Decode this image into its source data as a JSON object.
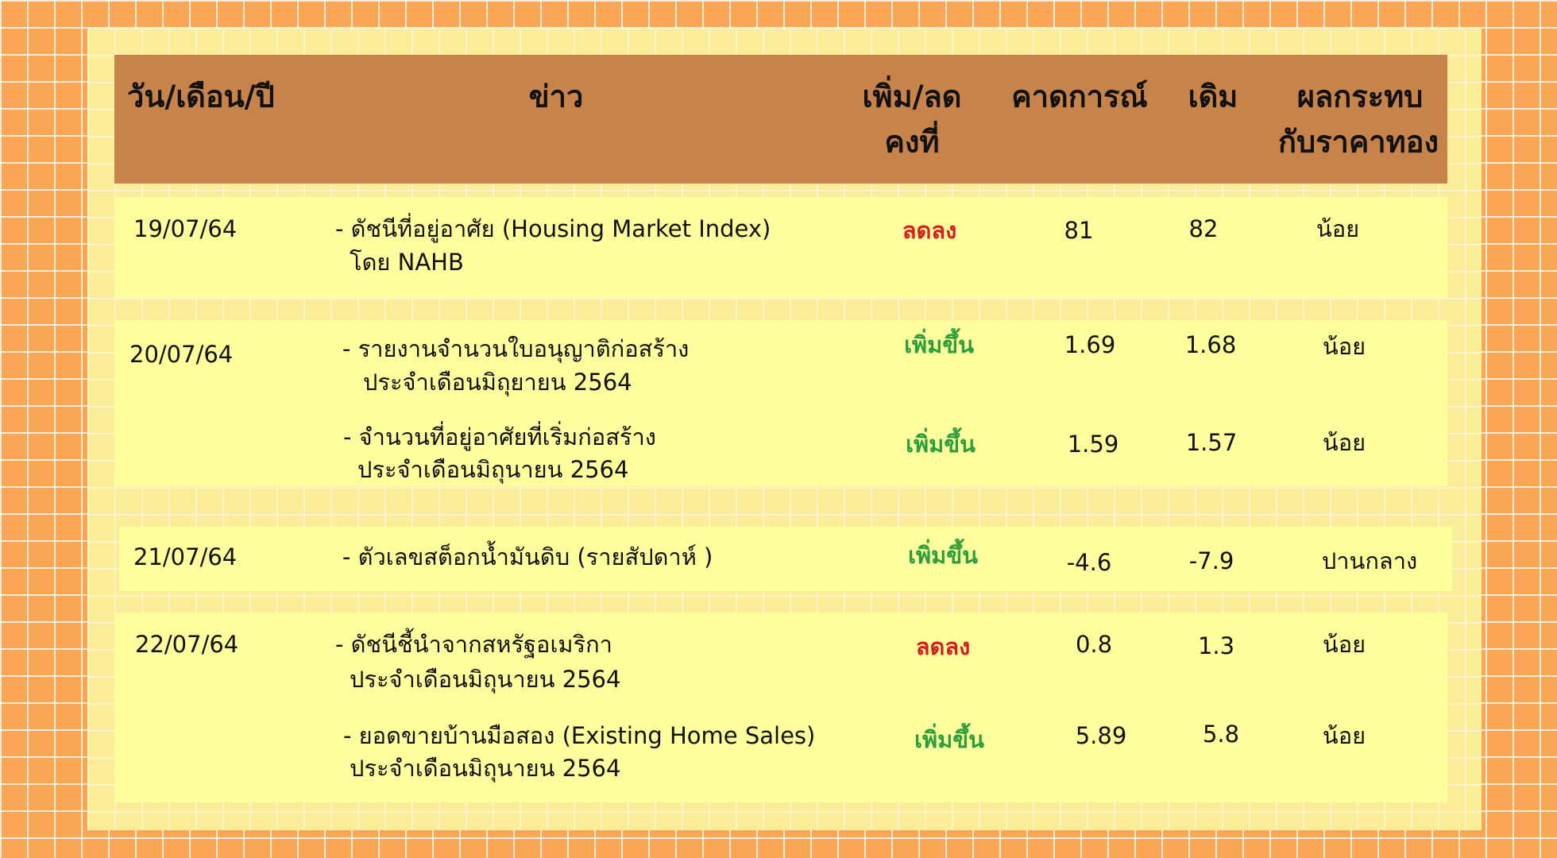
{
  "header": {
    "date": "วัน/เดือน/ปี",
    "news": "ข่าว",
    "change_line1": "เพิ่ม/ลด",
    "change_line2": "คงที่",
    "forecast": "คาดการณ์",
    "prior": "เดิม",
    "impact_line1": "ผลกระทบ",
    "impact_line2": "กับราคาทอง"
  },
  "colors": {
    "increase": "#2E9E3A",
    "decrease": "#D41F1F",
    "header_bg": "#C8834A",
    "row_bg": "#FFFF9E",
    "page_bg": "#F9A755"
  },
  "rows": [
    {
      "date": "19/07/64",
      "items": [
        {
          "news_line1": "- ดัชนีที่อยู่อาศัย (Housing Market Index)",
          "news_line2": "โดย NAHB",
          "change": "ลดลง",
          "forecast": "81",
          "prior": "82",
          "impact": "น้อย"
        }
      ]
    },
    {
      "date": "20/07/64",
      "items": [
        {
          "news_line1": "- รายงานจำนวนใบอนุญาติก่อสร้าง",
          "news_line2": "ประจำเดือนมิถุยายน 2564",
          "change": "เพิ่มขึ้น",
          "forecast": "1.69",
          "prior": "1.68",
          "impact": "น้อย"
        },
        {
          "news_line1": "- จำนวนที่อยู่อาศัยที่เริ่มก่อสร้าง",
          "news_line2": "ประจำเดือนมิถุนายน 2564",
          "change": "เพิ่มขึ้น",
          "forecast": "1.59",
          "prior": "1.57",
          "impact": "น้อย"
        }
      ]
    },
    {
      "date": "21/07/64",
      "items": [
        {
          "news_line1": "- ตัวเลขสต็อกน้ำมันดิบ (รายสัปดาห์ )",
          "change": "เพิ่มขึ้น",
          "forecast": "-4.6",
          "prior": "-7.9",
          "impact": "ปานกลาง"
        }
      ]
    },
    {
      "date": "22/07/64",
      "items": [
        {
          "news_line1": "- ดัชนีชี้นำจากสหรัฐอเมริกา",
          "news_line2": "ประจำเดือนมิถุนายน 2564",
          "change": "ลดลง",
          "forecast": "0.8",
          "prior": "1.3",
          "impact": "น้อย"
        },
        {
          "news_line1": "- ยอดขายบ้านมือสอง (Existing Home Sales)",
          "news_line2": "ประจำเดือนมิถุนายน 2564",
          "change": "เพิ่มขึ้น",
          "forecast": "5.89",
          "prior": "5.8",
          "impact": "น้อย"
        }
      ]
    }
  ]
}
